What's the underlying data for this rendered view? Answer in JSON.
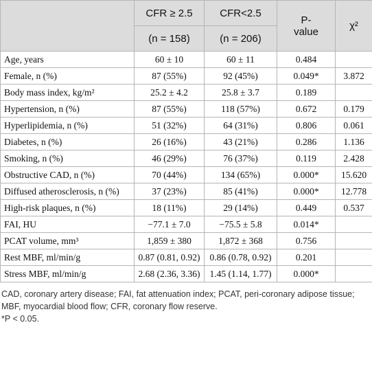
{
  "table": {
    "header": {
      "cfr_high": "CFR ≥ 2.5",
      "cfr_high_n": "(n = 158)",
      "cfr_low": "CFR<2.5",
      "cfr_low_n": "(n = 206)",
      "p_value": "P-value",
      "chi2": "χ²"
    },
    "rows": [
      [
        "Age, years",
        "60 ± 10",
        "60 ± 11",
        "0.484",
        null
      ],
      [
        "Female, n (%)",
        "87 (55%)",
        "92 (45%)",
        "0.049*",
        "3.872"
      ],
      [
        "Body mass index, kg/m²",
        "25.2 ± 4.2",
        "25.8 ± 3.7",
        "0.189",
        null
      ],
      [
        "Hypertension, n (%)",
        "87 (55%)",
        "118 (57%)",
        "0.672",
        "0.179"
      ],
      [
        "Hyperlipidemia, n (%)",
        "51 (32%)",
        "64 (31%)",
        "0.806",
        "0.061"
      ],
      [
        "Diabetes, n (%)",
        "26 (16%)",
        "43 (21%)",
        "0.286",
        "1.136"
      ],
      [
        "Smoking, n (%)",
        "46 (29%)",
        "76 (37%)",
        "0.119",
        "2.428"
      ],
      [
        "Obstructive CAD, n (%)",
        "70 (44%)",
        "134 (65%)",
        "0.000*",
        "15.620"
      ],
      [
        "Diffused atherosclerosis, n (%)",
        "37 (23%)",
        "85 (41%)",
        "0.000*",
        "12.778"
      ],
      [
        "High-risk plaques, n (%)",
        "18 (11%)",
        "29 (14%)",
        "0.449",
        "0.537"
      ],
      [
        "FAI, HU",
        "−77.1 ± 7.0",
        "−75.5 ± 5.8",
        "0.014*",
        null
      ],
      [
        "PCAT volume, mm³",
        "1,859 ± 380",
        "1,872 ± 368",
        "0.756",
        null
      ],
      [
        "Rest MBF, ml/min/g",
        "0.87 (0.81, 0.92)",
        "0.86 (0.78, 0.92)",
        "0.201",
        null
      ],
      [
        "Stress MBF, ml/min/g",
        "2.68 (2.36, 3.36)",
        "1.45 (1.14, 1.77)",
        "0.000*",
        null
      ]
    ]
  },
  "notes": [
    "CAD, coronary artery disease; FAI, fat attenuation index; PCAT, peri-coronary adipose tissue; MBF, myocardial blood flow; CFR, coronary flow reserve.",
    "*P < 0.05."
  ]
}
